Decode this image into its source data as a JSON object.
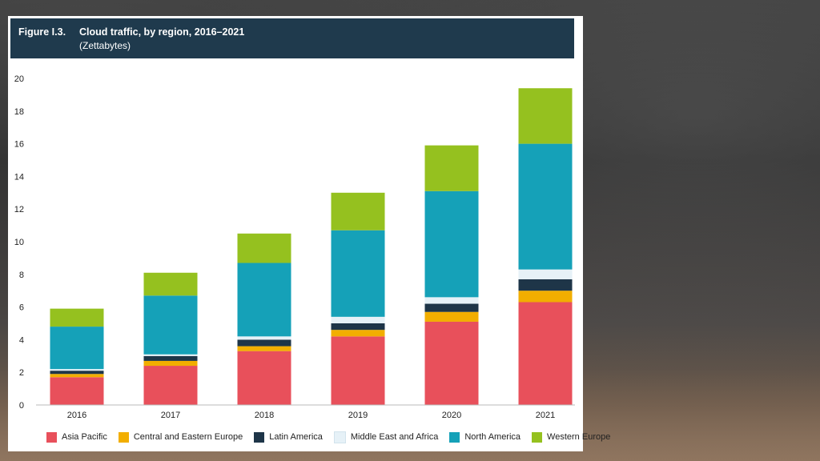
{
  "figure": {
    "number": "Figure I.3.",
    "title": "Cloud traffic, by region, 2016–2021",
    "subtitle": "(Zettabytes)"
  },
  "chart_data": {
    "type": "bar",
    "stacked": true,
    "title": "Cloud traffic, by region, 2016–2021",
    "subtitle": "(Zettabytes)",
    "xlabel": "",
    "ylabel": "",
    "categories": [
      "2016",
      "2017",
      "2018",
      "2019",
      "2020",
      "2021"
    ],
    "ylim": [
      0,
      20
    ],
    "yticks": [
      "0",
      "2",
      "4",
      "6",
      "8",
      "10",
      "12",
      "14",
      "16",
      "18",
      "20"
    ],
    "grid": false,
    "legend_position": "bottom",
    "series": [
      {
        "name": "Asia Pacific",
        "color": "#e8505b",
        "values": [
          1.7,
          2.4,
          3.3,
          4.2,
          5.1,
          6.3
        ]
      },
      {
        "name": "Central and Eastern Europe",
        "color": "#f2ae00",
        "values": [
          0.2,
          0.3,
          0.3,
          0.4,
          0.6,
          0.7
        ]
      },
      {
        "name": "Latin America",
        "color": "#1e3548",
        "values": [
          0.2,
          0.3,
          0.4,
          0.4,
          0.5,
          0.7
        ]
      },
      {
        "name": "Middle East and Africa",
        "color": "#e6f1f7",
        "values": [
          0.1,
          0.1,
          0.2,
          0.4,
          0.4,
          0.6
        ]
      },
      {
        "name": "North America",
        "color": "#15a1b8",
        "values": [
          2.6,
          3.6,
          4.5,
          5.3,
          6.5,
          7.7
        ]
      },
      {
        "name": "Western Europe",
        "color": "#95c11f",
        "values": [
          1.1,
          1.4,
          1.8,
          2.3,
          2.8,
          3.4
        ]
      }
    ]
  }
}
